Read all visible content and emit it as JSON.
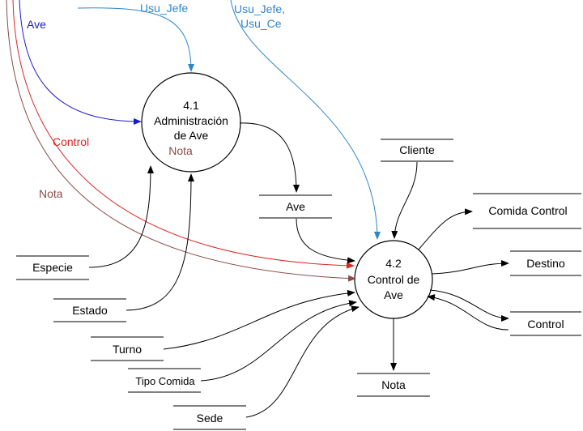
{
  "colors": {
    "ave": "#1a1ad6",
    "usu": "#2e86c8",
    "control": "#e02424",
    "nota": "#8b4a4a",
    "black": "#000000"
  },
  "processes": {
    "p41": {
      "number": "4.1",
      "line1": "Administración",
      "line2": "de Ave",
      "note": "Nota"
    },
    "p42": {
      "number": "4.2",
      "line1": "Control de",
      "line2": "Ave"
    }
  },
  "stores": {
    "ave": "Ave",
    "cliente": "Cliente",
    "comida_control": "Comida Control",
    "destino": "Destino",
    "control": "Control",
    "nota": "Nota",
    "especie": "Especie",
    "estado": "Estado",
    "turno": "Turno",
    "tipo_comida": "Tipo Comida",
    "sede": "Sede"
  },
  "flows": {
    "usu_jefe": "Usu_Jefe",
    "usu_jefe_ce_1": "Usu_Jefe,",
    "usu_jefe_ce_2": "Usu_Ce",
    "ave": "Ave",
    "control": "Control",
    "nota": "Nota"
  }
}
